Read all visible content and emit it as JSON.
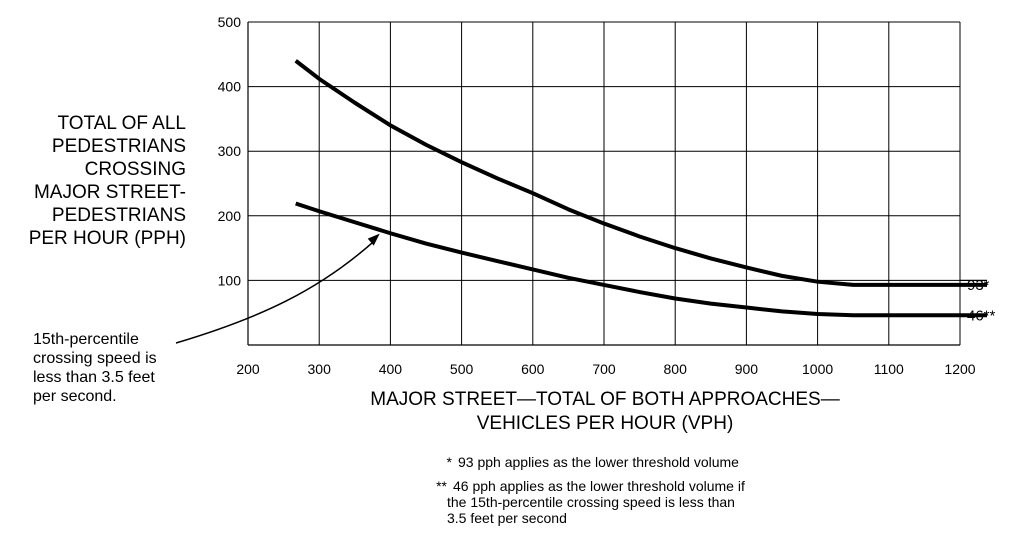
{
  "chart_data": {
    "type": "line",
    "title": "",
    "xlabel_lines": [
      "MAJOR STREET—TOTAL OF BOTH APPROACHES—",
      "VEHICLES PER HOUR (VPH)"
    ],
    "ylabel_lines": [
      "TOTAL OF ALL",
      "PEDESTRIANS",
      "CROSSING",
      "MAJOR STREET-",
      "PEDESTRIANS",
      "PER HOUR (PPH)"
    ],
    "xlim": [
      200,
      1200
    ],
    "ylim": [
      0,
      500
    ],
    "xticks": [
      "200",
      "300",
      "400",
      "500",
      "600",
      "700",
      "800",
      "900",
      "1000",
      "1100",
      "1200"
    ],
    "yticks": [
      "100",
      "200",
      "300",
      "400",
      "500"
    ],
    "grid": true,
    "reference_line": {
      "y": 100
    },
    "series": [
      {
        "label": "93*",
        "x": [
          267,
          300,
          350,
          400,
          450,
          500,
          550,
          600,
          650,
          700,
          750,
          800,
          850,
          900,
          950,
          1000,
          1050,
          1200
        ],
        "y": [
          440,
          412,
          375,
          340,
          310,
          283,
          258,
          235,
          210,
          188,
          168,
          150,
          134,
          120,
          107,
          98,
          93,
          93
        ]
      },
      {
        "label": "46**",
        "x": [
          267,
          300,
          350,
          400,
          450,
          500,
          550,
          600,
          650,
          700,
          750,
          800,
          850,
          900,
          950,
          1000,
          1050,
          1200
        ],
        "y": [
          219,
          207,
          190,
          173,
          157,
          143,
          130,
          117,
          104,
          93,
          82,
          72,
          64,
          58,
          52,
          48,
          46,
          46
        ]
      }
    ],
    "annotation": {
      "lines": [
        "15th-percentile",
        "crossing speed is",
        "less than 3.5 feet",
        "per second."
      ],
      "points_to": {
        "x": 385,
        "y": 177
      }
    },
    "footnotes": {
      "fn1_mark": "*",
      "fn1_text": "93 pph applies as the lower threshold volume",
      "fn2_mark": "**",
      "fn2_lines": [
        "46 pph applies as the lower threshold volume if",
        "the 15th-percentile crossing speed is less than",
        "3.5 feet per second"
      ]
    }
  }
}
